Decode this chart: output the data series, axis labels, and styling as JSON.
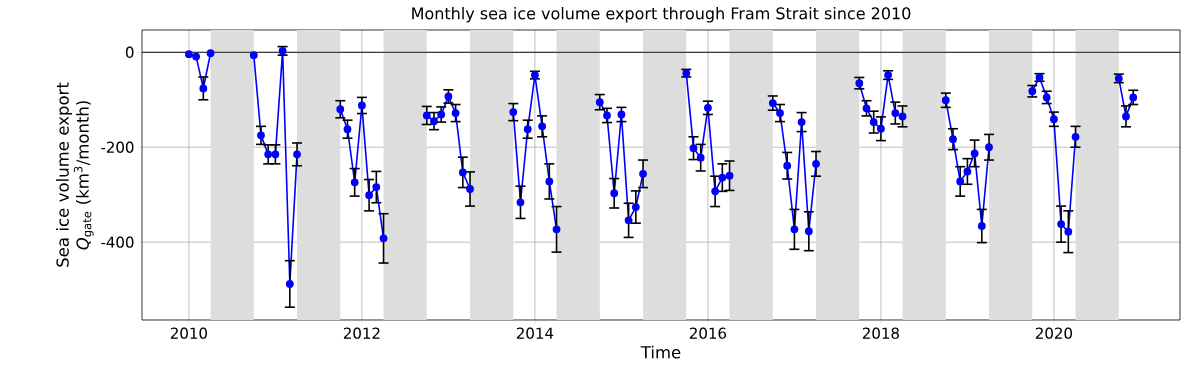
{
  "chart_data": {
    "type": "line",
    "title": "Monthly sea ice volume export through Fram Strait since 2010",
    "xlabel": "Time",
    "ylabel": "Sea ice volume export *Q*$_{gate}$ (km$^{3}$/month)",
    "x": [
      "2010-01",
      "2010-02",
      "2010-03",
      "2010-04",
      "2010-05",
      "2010-06",
      "2010-07",
      "2010-08",
      "2010-09",
      "2010-10",
      "2010-11",
      "2010-12",
      "2011-01",
      "2011-02",
      "2011-03",
      "2011-04",
      "2011-05",
      "2011-06",
      "2011-07",
      "2011-08",
      "2011-09",
      "2011-10",
      "2011-11",
      "2011-12",
      "2012-01",
      "2012-02",
      "2012-03",
      "2012-04",
      "2012-05",
      "2012-06",
      "2012-07",
      "2012-08",
      "2012-09",
      "2012-10",
      "2012-11",
      "2012-12",
      "2013-01",
      "2013-02",
      "2013-03",
      "2013-04",
      "2013-05",
      "2013-06",
      "2013-07",
      "2013-08",
      "2013-09",
      "2013-10",
      "2013-11",
      "2013-12",
      "2014-01",
      "2014-02",
      "2014-03",
      "2014-04",
      "2014-05",
      "2014-06",
      "2014-07",
      "2014-08",
      "2014-09",
      "2014-10",
      "2014-11",
      "2014-12",
      "2015-01",
      "2015-02",
      "2015-03",
      "2015-04",
      "2015-05",
      "2015-06",
      "2015-07",
      "2015-08",
      "2015-09",
      "2015-10",
      "2015-11",
      "2015-12",
      "2016-01",
      "2016-02",
      "2016-03",
      "2016-04",
      "2016-05",
      "2016-06",
      "2016-07",
      "2016-08",
      "2016-09",
      "2016-10",
      "2016-11",
      "2016-12",
      "2017-01",
      "2017-02",
      "2017-03",
      "2017-04",
      "2017-05",
      "2017-06",
      "2017-07",
      "2017-08",
      "2017-09",
      "2017-10",
      "2017-11",
      "2017-12",
      "2018-01",
      "2018-02",
      "2018-03",
      "2018-04",
      "2018-05",
      "2018-06",
      "2018-07",
      "2018-08",
      "2018-09",
      "2018-10",
      "2018-11",
      "2018-12",
      "2019-01",
      "2019-02",
      "2019-03",
      "2019-04",
      "2019-05",
      "2019-06",
      "2019-07",
      "2019-08",
      "2019-09",
      "2019-10",
      "2019-11",
      "2019-12",
      "2020-01",
      "2020-02",
      "2020-03",
      "2020-04",
      "2020-05",
      "2020-06",
      "2020-07",
      "2020-08",
      "2020-09",
      "2020-10",
      "2020-11",
      "2020-12"
    ],
    "series": [
      {
        "color": "#0000ff",
        "values": [
          -4,
          -9,
          -76,
          -2,
          null,
          null,
          null,
          null,
          null,
          -6,
          -175,
          -215,
          -215,
          3,
          -488,
          -215,
          null,
          null,
          null,
          null,
          null,
          -120,
          -162,
          -274,
          -112,
          -301,
          -284,
          -392,
          null,
          null,
          null,
          null,
          null,
          -133,
          -145,
          -131,
          -93,
          -128,
          -253,
          -288,
          null,
          null,
          null,
          null,
          null,
          -126,
          -316,
          -162,
          -48,
          -156,
          -272,
          -373,
          null,
          null,
          null,
          null,
          null,
          -105,
          -133,
          -297,
          -131,
          -354,
          -326,
          -256,
          null,
          null,
          null,
          null,
          null,
          -44,
          -202,
          -222,
          -117,
          -293,
          -264,
          -260,
          null,
          null,
          null,
          null,
          null,
          -107,
          -128,
          -239,
          -373,
          -147,
          -377,
          -235,
          null,
          null,
          null,
          null,
          null,
          -65,
          -118,
          -147,
          -161,
          -48,
          -128,
          -135,
          null,
          null,
          null,
          null,
          null,
          -101,
          -183,
          -272,
          -251,
          -213,
          -366,
          -200,
          null,
          null,
          null,
          null,
          null,
          -82,
          -53,
          -95,
          -141,
          -362,
          -378,
          -178,
          null,
          null,
          null,
          null,
          null,
          -55,
          -135,
          -95
        ],
        "errors": [
          null,
          null,
          24,
          null,
          null,
          null,
          null,
          null,
          null,
          null,
          19,
          20,
          20,
          9,
          49,
          24,
          null,
          null,
          null,
          null,
          null,
          18,
          19,
          29,
          17,
          33,
          33,
          52,
          null,
          null,
          null,
          null,
          null,
          19,
          18,
          16,
          14,
          18,
          32,
          36,
          null,
          null,
          null,
          null,
          null,
          18,
          34,
          19,
          8,
          22,
          37,
          48,
          null,
          null,
          null,
          null,
          null,
          16,
          15,
          31,
          15,
          36,
          34,
          29,
          null,
          null,
          null,
          null,
          null,
          8,
          24,
          28,
          14,
          32,
          29,
          31,
          null,
          null,
          null,
          null,
          null,
          15,
          18,
          28,
          42,
          20,
          41,
          26,
          null,
          null,
          null,
          null,
          null,
          12,
          16,
          23,
          25,
          9,
          23,
          22,
          null,
          null,
          null,
          null,
          null,
          15,
          22,
          31,
          27,
          28,
          35,
          27,
          null,
          null,
          null,
          null,
          null,
          12,
          8,
          13,
          15,
          38,
          44,
          22,
          null,
          null,
          null,
          null,
          null,
          9,
          22,
          15
        ]
      }
    ],
    "xlim": [
      "2009-06-16",
      "2021-06-16"
    ],
    "xticks": [
      "2010",
      "2012",
      "2014",
      "2016",
      "2018",
      "2020"
    ],
    "ylim": [
      -564,
      47
    ],
    "yticks": [
      -400,
      -200,
      0
    ],
    "grid": true,
    "marker": "circle",
    "line_style": "solid",
    "ref_lines": [
      {
        "axis": "y",
        "value": 0,
        "color": "#000000"
      }
    ],
    "bands": [
      {
        "axis": "x",
        "from": "2010-04",
        "to": "2010-10",
        "color": "#dddddd"
      },
      {
        "axis": "x",
        "from": "2011-04",
        "to": "2011-10",
        "color": "#dddddd"
      },
      {
        "axis": "x",
        "from": "2012-04",
        "to": "2012-10",
        "color": "#dddddd"
      },
      {
        "axis": "x",
        "from": "2013-04",
        "to": "2013-10",
        "color": "#dddddd"
      },
      {
        "axis": "x",
        "from": "2014-04",
        "to": "2014-10",
        "color": "#dddddd"
      },
      {
        "axis": "x",
        "from": "2015-04",
        "to": "2015-10",
        "color": "#dddddd"
      },
      {
        "axis": "x",
        "from": "2016-04",
        "to": "2016-10",
        "color": "#dddddd"
      },
      {
        "axis": "x",
        "from": "2017-04",
        "to": "2017-10",
        "color": "#dddddd"
      },
      {
        "axis": "x",
        "from": "2018-04",
        "to": "2018-10",
        "color": "#dddddd"
      },
      {
        "axis": "x",
        "from": "2019-04",
        "to": "2019-10",
        "color": "#dddddd"
      },
      {
        "axis": "x",
        "from": "2020-04",
        "to": "2020-10",
        "color": "#dddddd"
      }
    ]
  }
}
